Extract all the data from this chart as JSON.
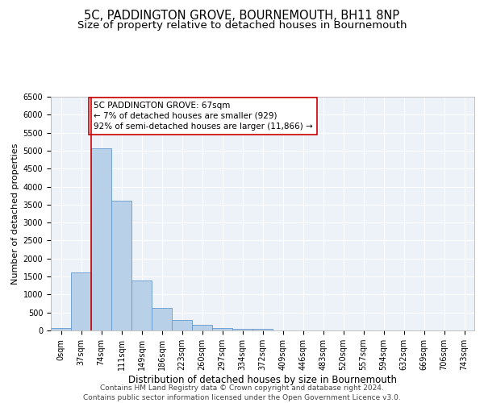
{
  "title": "5C, PADDINGTON GROVE, BOURNEMOUTH, BH11 8NP",
  "subtitle": "Size of property relative to detached houses in Bournemouth",
  "xlabel": "Distribution of detached houses by size in Bournemouth",
  "ylabel": "Number of detached properties",
  "footer_line1": "Contains HM Land Registry data © Crown copyright and database right 2024.",
  "footer_line2": "Contains public sector information licensed under the Open Government Licence v3.0.",
  "annotation_line1": "5C PADDINGTON GROVE: 67sqm",
  "annotation_line2": "← 7% of detached houses are smaller (929)",
  "annotation_line3": "92% of semi-detached houses are larger (11,866) →",
  "bar_values": [
    75,
    1625,
    5075,
    3600,
    1400,
    625,
    300,
    150,
    75,
    50,
    50,
    0,
    0,
    0,
    0,
    0,
    0,
    0,
    0,
    0,
    0
  ],
  "categories": [
    "0sqm",
    "37sqm",
    "74sqm",
    "111sqm",
    "149sqm",
    "186sqm",
    "223sqm",
    "260sqm",
    "297sqm",
    "334sqm",
    "372sqm",
    "409sqm",
    "446sqm",
    "483sqm",
    "520sqm",
    "557sqm",
    "594sqm",
    "632sqm",
    "669sqm",
    "706sqm",
    "743sqm"
  ],
  "bar_color": "#b8d0e8",
  "bar_edge_color": "#6699cc",
  "marker_color": "#cc0000",
  "ylim": [
    0,
    6500
  ],
  "yticks": [
    0,
    500,
    1000,
    1500,
    2000,
    2500,
    3000,
    3500,
    4000,
    4500,
    5000,
    5500,
    6000,
    6500
  ],
  "bg_color": "#edf2f9",
  "grid_color": "#ffffff",
  "annotation_box_color": "#ffffff",
  "annotation_box_edge": "#cc0000",
  "title_fontsize": 10.5,
  "subtitle_fontsize": 9.5,
  "xlabel_fontsize": 8.5,
  "ylabel_fontsize": 8,
  "tick_fontsize": 7,
  "annotation_fontsize": 7.5,
  "footer_fontsize": 6.5
}
